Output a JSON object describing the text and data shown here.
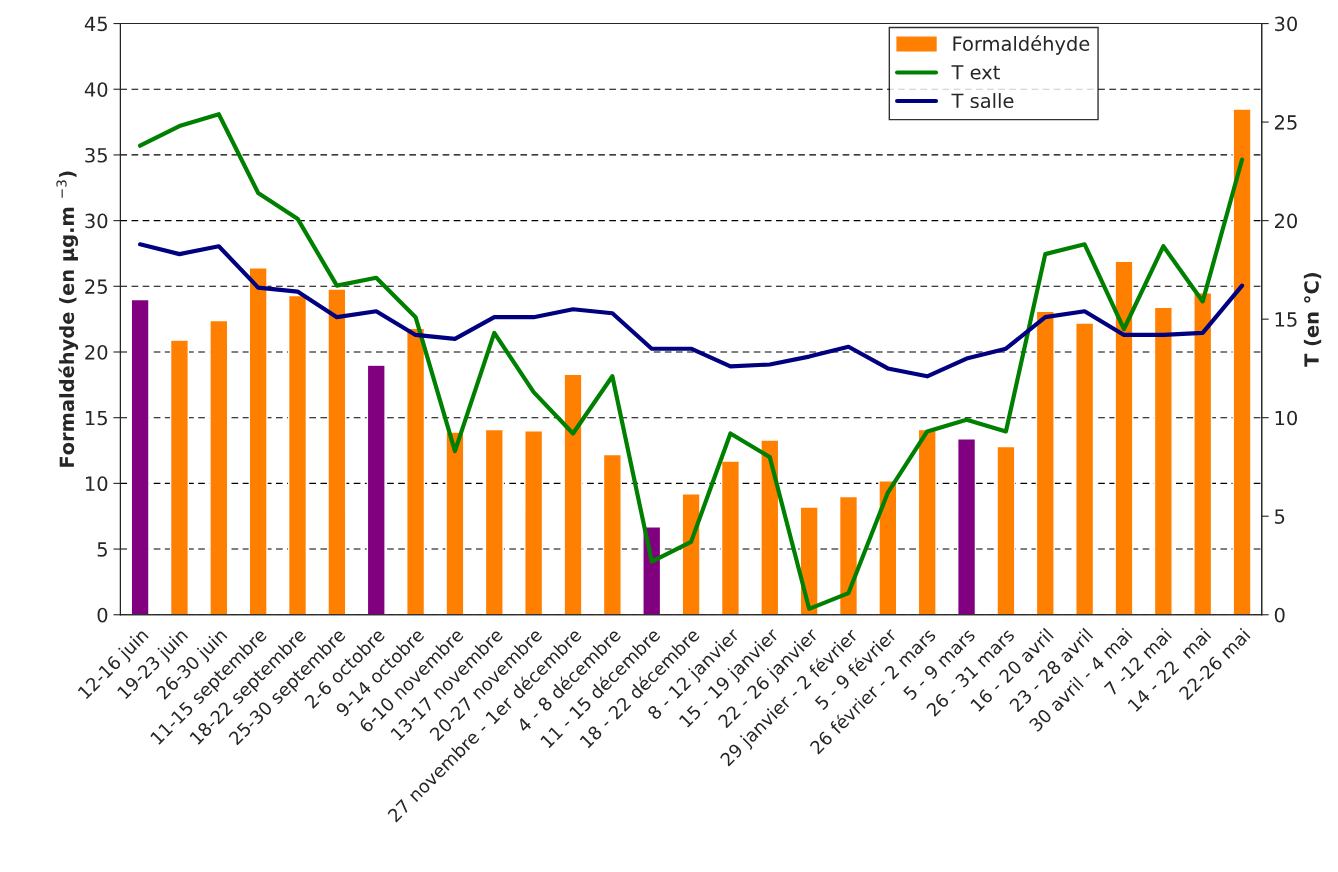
{
  "chart_data": {
    "type": "bar",
    "ylabel": "Formaldéhyde (en µg.m $^{−3}$)",
    "y2label": "T (en °C)",
    "categories": [
      "12-16 juin",
      "19-23 juin",
      "26-30 juin",
      "11-15 septembre",
      "18-22 septembre",
      "25-30 septembre",
      "2-6 octobre",
      "9-14 octobre",
      "6-10 novembre",
      "13-17 novembre",
      "20-27 novembre",
      "27 novembre - 1er décembre",
      "4 - 8 décembre",
      "11 - 15 décembre",
      "18 - 22 décembre",
      "8 - 12 janvier",
      "15 - 19 janvier",
      "22 - 26 janvier",
      "29 janvier - 2 février",
      "5 - 9 février",
      "26 février - 2 mars",
      "5 - 9 mars",
      "26 - 31 mars",
      "16 - 20 avril",
      "23 - 28 avril",
      "30 avril - 4 mai",
      "7 -12 mai",
      "14 - 22  mai",
      "22-26 mai"
    ],
    "series": [
      {
        "name": "Formaldéhyde",
        "color": "#ff7f00",
        "colors": [
          "#800080",
          "#ff7f00",
          "#ff7f00",
          "#ff7f00",
          "#ff7f00",
          "#ff7f00",
          "#800080",
          "#ff7f00",
          "#ff7f00",
          "#ff7f00",
          "#ff7f00",
          "#ff7f00",
          "#ff7f00",
          "#800080",
          "#ff7f00",
          "#ff7f00",
          "#ff7f00",
          "#ff7f00",
          "#ff7f00",
          "#ff7f00",
          "#ff7f00",
          "#800080",
          "#ff7f00",
          "#ff7f00",
          "#ff7f00",
          "#ff7f00",
          "#ff7f00",
          "#ff7f00",
          "#ff7f00"
        ],
        "values": [
          24,
          20.9,
          22.4,
          26.4,
          24.3,
          24.8,
          19,
          21.8,
          13.9,
          14.1,
          14,
          18.3,
          12.2,
          6.7,
          9.2,
          11.7,
          13.3,
          8.2,
          9,
          10.2,
          14.1,
          13.4,
          12.8,
          23.1,
          22.2,
          26.9,
          23.4,
          24.5,
          38.5
        ]
      },
      {
        "name": "T ext",
        "type": "line",
        "axis": "y2",
        "color": "#008000",
        "values": [
          23.8,
          24.8,
          25.4,
          21.4,
          20.1,
          16.7,
          17.1,
          15.1,
          8.3,
          14.3,
          11.3,
          9.2,
          12.1,
          2.7,
          3.7,
          9.2,
          8,
          0.3,
          1.1,
          6.2,
          9.3,
          9.9,
          9.3,
          18.3,
          18.8,
          14.5,
          18.7,
          15.9,
          23.1
        ]
      },
      {
        "name": "T salle",
        "type": "line",
        "axis": "y2",
        "color": "#000080",
        "values": [
          18.8,
          18.3,
          18.7,
          16.6,
          16.4,
          15.1,
          15.4,
          14.2,
          14,
          15.1,
          15.1,
          15.5,
          15.3,
          13.5,
          13.5,
          12.6,
          12.7,
          13.1,
          13.6,
          12.5,
          12.1,
          13,
          13.5,
          15.1,
          15.4,
          14.2,
          14.2,
          14.3,
          16.7
        ]
      }
    ],
    "ylim": [
      0,
      45
    ],
    "yticks": [
      0,
      5,
      10,
      15,
      20,
      25,
      30,
      35,
      40,
      45
    ],
    "y2lim": [
      0,
      30
    ],
    "y2ticks": [
      0,
      5,
      10,
      15,
      20,
      25,
      30
    ],
    "grid": "y",
    "legend": "top right",
    "marker": "none",
    "line_style": "solid"
  }
}
